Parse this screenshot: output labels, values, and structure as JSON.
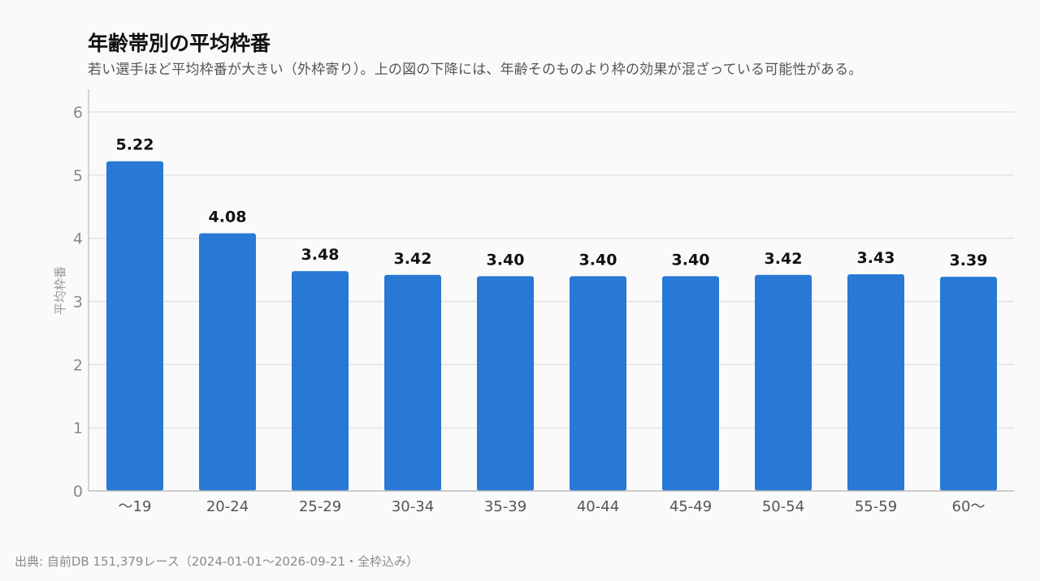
{
  "title": "年齢帯別の平均枠番",
  "subtitle": "若い選手ほど平均枠番が大きい（外枠寄り）。上の図の下降には、年齢そのものより枠の効果が混ざっている可能性がある。",
  "source": "出典: 自前DB 151,379レース（2024-01-01〜2026-09-21・全枠込み）",
  "colors": {
    "bar": "#2878d6",
    "grid": "#dddddd",
    "axis": "#bbbbbb"
  },
  "chart_data": {
    "type": "bar",
    "title": "年齢帯別の平均枠番",
    "xlabel": "",
    "ylabel": "平均枠番",
    "categories": [
      "〜19",
      "20-24",
      "25-29",
      "30-34",
      "35-39",
      "40-44",
      "45-49",
      "50-54",
      "55-59",
      "60〜"
    ],
    "values": [
      5.22,
      4.08,
      3.48,
      3.42,
      3.4,
      3.4,
      3.4,
      3.42,
      3.43,
      3.39
    ],
    "value_labels": [
      "5.22",
      "4.08",
      "3.48",
      "3.42",
      "3.40",
      "3.40",
      "3.40",
      "3.42",
      "3.43",
      "3.39"
    ],
    "ylim": [
      0,
      6
    ],
    "yticks": [
      "0",
      "1",
      "2",
      "3",
      "4",
      "5",
      "6"
    ],
    "grid": true,
    "legend": "none"
  }
}
